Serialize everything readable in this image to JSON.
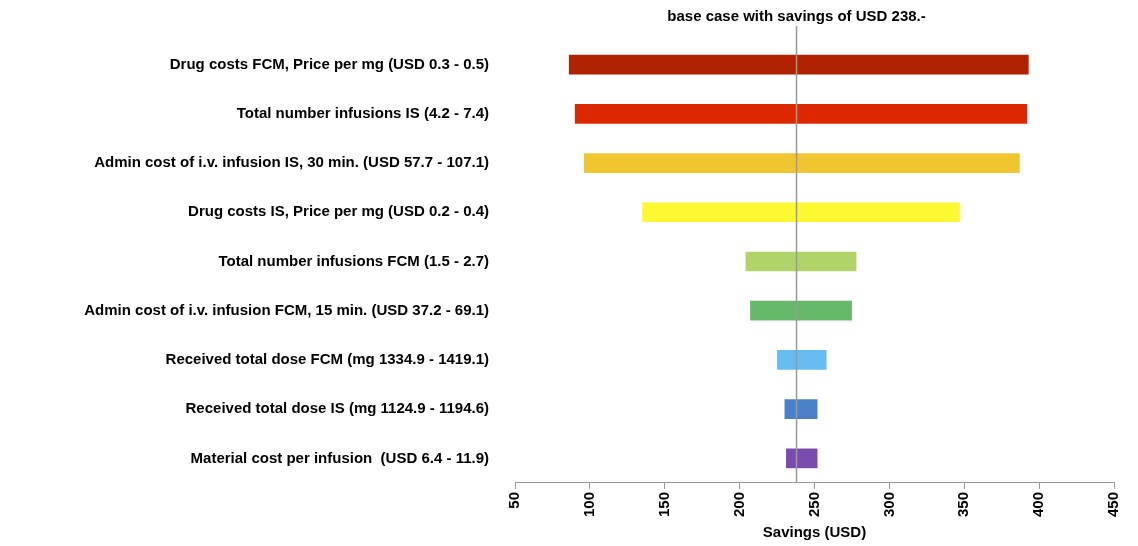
{
  "chart_data": {
    "type": "bar",
    "orientation": "horizontal",
    "categories": [
      "Drug costs FCM, Price per mg (USD 0.3 - 0.5)",
      "Total number infusions IS (4.2 - 7.4)",
      "Admin cost of i.v. infusion IS, 30 min. (USD 57.7 - 107.1)",
      "Drug costs IS, Price per mg (USD 0.2 - 0.4)",
      "Total number infusions FCM (1.5 - 2.7)",
      "Admin cost of i.v. infusion FCM, 15 min. (USD 37.2 - 69.1)",
      "Received total dose FCM (mg 1334.9 - 1419.1)",
      "Received total dose IS (mg 1124.9 - 1194.6)",
      "Material cost per infusion  (USD 6.4 - 11.9)"
    ],
    "base": [
      86,
      90,
      96,
      135,
      204,
      207,
      225,
      230,
      231
    ],
    "values": [
      307,
      302,
      291,
      212,
      74,
      68,
      33,
      22,
      21
    ],
    "colors": [
      "#b02200",
      "#dc2800",
      "#f0c630",
      "#fcf832",
      "#b0d46a",
      "#66b96a",
      "#66bdf2",
      "#4a80c8",
      "#7a4cb0"
    ],
    "xlim": [
      50,
      450
    ],
    "xticks": [
      50,
      100,
      150,
      200,
      250,
      300,
      350,
      400,
      450
    ],
    "xlabel": "Savings (USD)",
    "ref_lines": [
      {
        "axis": "x",
        "value": 238,
        "label": "base case with savings of USD 238.-",
        "color": "#999999"
      }
    ]
  }
}
